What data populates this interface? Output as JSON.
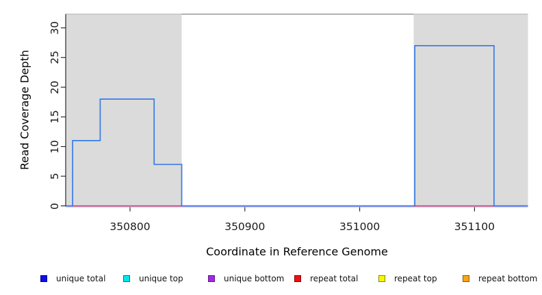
{
  "axes": {
    "x": {
      "label": "Coordinate in Reference Genome",
      "tick_labels": [
        "350800",
        "350900",
        "351000",
        "351100"
      ]
    },
    "y": {
      "label": "Read Coverage Depth",
      "tick_labels": [
        "0",
        "5",
        "10",
        "15",
        "20",
        "25",
        "30"
      ]
    }
  },
  "legend": {
    "items": [
      {
        "label": "unique total",
        "color": "#0D0DEE",
        "border": "#000099"
      },
      {
        "label": "unique top",
        "color": "#00E6EE",
        "border": "#007A8A"
      },
      {
        "label": "unique bottom",
        "color": "#A228E8",
        "border": "#611980"
      },
      {
        "label": "repeat total",
        "color": "#EE1010",
        "border": "#8B0000"
      },
      {
        "label": "repeat top",
        "color": "#F7F700",
        "border": "#8A8A00"
      },
      {
        "label": "repeat bottom",
        "color": "#F7A51B",
        "border": "#8A5C00"
      }
    ]
  },
  "chart_data": {
    "type": "step-line",
    "title": "",
    "xlabel": "Coordinate in Reference Genome",
    "ylabel": "Read Coverage Depth",
    "xlim": [
      350744,
      351147
    ],
    "ylim": [
      0,
      32
    ],
    "x_ticks": [
      350800,
      350900,
      351000,
      351100
    ],
    "y_ticks": [
      0,
      5,
      10,
      15,
      20,
      25,
      30
    ],
    "grid": false,
    "legend_position": "bottom",
    "top_border_value": 32,
    "top_border_color": "#8E8E8E",
    "repeat_region_fill": "#DBDBDB",
    "repeat_regions": [
      [
        350744,
        350845
      ],
      [
        351047,
        351147
      ]
    ],
    "series": [
      {
        "name": "unique total",
        "color": "#0D0DEE",
        "plot_color": "#377CE8",
        "steps": [
          [
            350744,
            0
          ],
          [
            350750,
            11
          ],
          [
            350774,
            18
          ],
          [
            350821,
            7
          ],
          [
            350845,
            0
          ],
          [
            351048,
            27
          ],
          [
            351117,
            0
          ],
          [
            351147,
            0
          ]
        ]
      },
      {
        "name": "unique top",
        "color": "#00E6EE",
        "plot_color": "#00E6EE",
        "steps": [
          [
            350744,
            0
          ],
          [
            351147,
            0
          ]
        ]
      },
      {
        "name": "unique bottom",
        "color": "#A228E8",
        "plot_color": "#BCA3F1",
        "steps": [
          [
            350744,
            0
          ],
          [
            351147,
            0
          ]
        ]
      },
      {
        "name": "repeat total",
        "color": "#EE1010",
        "plot_color": "#E0404E",
        "steps": [
          [
            350744,
            0
          ],
          [
            351147,
            0
          ]
        ],
        "visible_zero_segments": [
          [
            350750,
            350845
          ],
          [
            351047,
            351117
          ]
        ]
      },
      {
        "name": "repeat top",
        "color": "#F7F700",
        "plot_color": "#F7F700",
        "steps": [
          [
            350744,
            0
          ],
          [
            351147,
            0
          ]
        ]
      },
      {
        "name": "repeat bottom",
        "color": "#F7A51B",
        "plot_color": "#F7A51B",
        "steps": [
          [
            350744,
            0
          ],
          [
            351147,
            0
          ]
        ]
      }
    ]
  }
}
